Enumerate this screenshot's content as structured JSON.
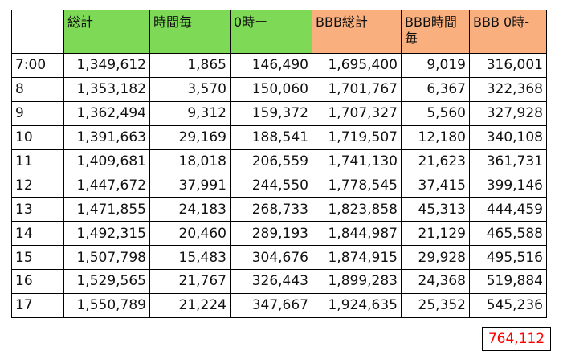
{
  "headers": [
    "",
    "総計",
    "時間毎",
    "0時ー",
    "BBB総計",
    "BBB時間毎",
    "BBB 0時-"
  ],
  "header_colors": {
    "green": "#7ed957",
    "orange": "#f9b07e"
  },
  "rows": [
    [
      "7:00",
      "1,349,612",
      "1,865",
      "146,490",
      "1,695,400",
      "9,019",
      "316,001"
    ],
    [
      "8",
      "1,353,182",
      "3,570",
      "150,060",
      "1,701,767",
      "6,367",
      "322,368"
    ],
    [
      "9",
      "1,362,494",
      "9,312",
      "159,372",
      "1,707,327",
      "5,560",
      "327,928"
    ],
    [
      "10",
      "1,391,663",
      "29,169",
      "188,541",
      "1,719,507",
      "12,180",
      "340,108"
    ],
    [
      "11",
      "1,409,681",
      "18,018",
      "206,559",
      "1,741,130",
      "21,623",
      "361,731"
    ],
    [
      "12",
      "1,447,672",
      "37,991",
      "244,550",
      "1,778,545",
      "37,415",
      "399,146"
    ],
    [
      "13",
      "1,471,855",
      "24,183",
      "268,733",
      "1,823,858",
      "45,313",
      "444,459"
    ],
    [
      "14",
      "1,492,315",
      "20,460",
      "289,193",
      "1,844,987",
      "21,129",
      "465,588"
    ],
    [
      "15",
      "1,507,798",
      "15,483",
      "304,676",
      "1,874,915",
      "29,928",
      "495,516"
    ],
    [
      "16",
      "1,529,565",
      "21,767",
      "326,443",
      "1,899,283",
      "24,368",
      "519,884"
    ],
    [
      "17",
      "1,550,789",
      "21,224",
      "347,667",
      "1,924,635",
      "25,352",
      "545,236"
    ]
  ],
  "total": "764,112",
  "total_color": "#ff0000"
}
